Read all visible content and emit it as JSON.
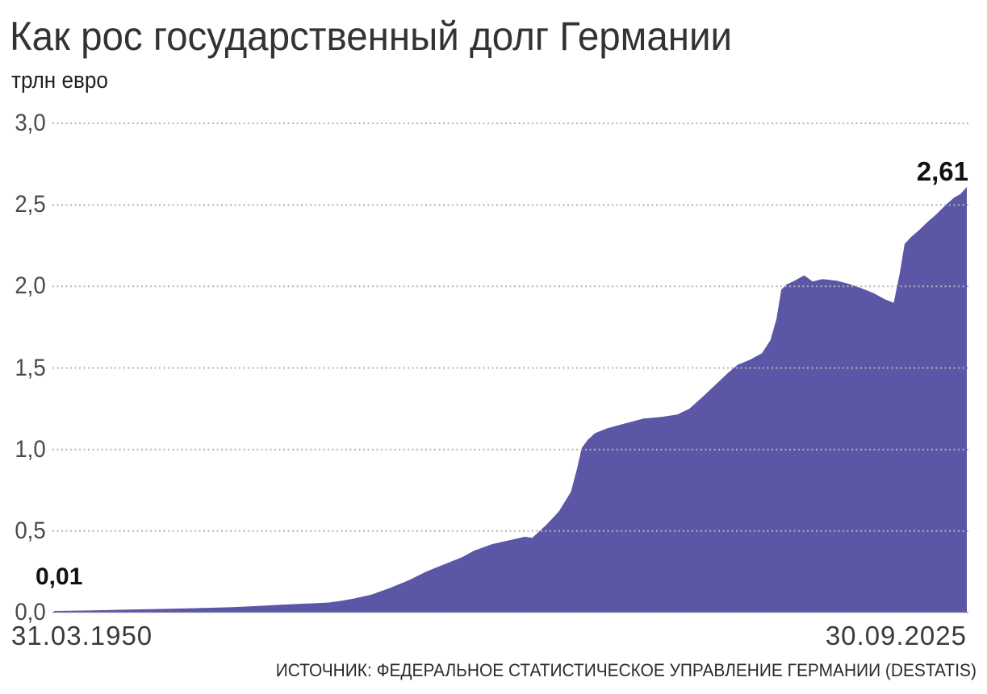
{
  "header": {
    "title": "Как рос государственный долг Германии",
    "subtitle": "трлн евро"
  },
  "annotations": {
    "start_value": "0,01",
    "end_value": "2,61"
  },
  "x_axis": {
    "start_label": "31.03.1950",
    "end_label": "30.09.2025"
  },
  "source": "ИСТОЧНИК: ФЕДЕРАЛЬНОЕ СТАТИСТИЧЕСКОЕ УПРАВЛЕНИЕ ГЕРМАНИИ (DESTATIS)",
  "colors": {
    "area_fill": "#5b57a6",
    "gridline": "#b4b4b4",
    "title_text": "#333333",
    "tick_text": "#4a4a4a",
    "annotation_text": "#111111"
  },
  "chart_data": {
    "type": "area",
    "title": "Как рос государственный долг Германии",
    "ylabel": "трлн евро",
    "xlabel": "",
    "x_start_date": "31.03.1950",
    "x_end_date": "30.09.2025",
    "xlim": [
      1950.25,
      2025.75
    ],
    "ylim": [
      0,
      3.0
    ],
    "grid": "horizontal-dotted",
    "legend": "none",
    "yticks": [
      {
        "value": 0.0,
        "label": "0,0"
      },
      {
        "value": 0.5,
        "label": "0,5"
      },
      {
        "value": 1.0,
        "label": "1,0"
      },
      {
        "value": 1.5,
        "label": "1,5"
      },
      {
        "value": 2.0,
        "label": "2,0"
      },
      {
        "value": 2.5,
        "label": "2,5"
      },
      {
        "value": 3.0,
        "label": "3,0"
      }
    ],
    "first_point": {
      "date": "31.03.1950",
      "value": 0.01,
      "label": "0,01"
    },
    "last_point": {
      "date": "30.09.2025",
      "value": 2.61,
      "label": "2,61"
    },
    "series": [
      {
        "name": "Государственный долг Германии, трлн евро",
        "points": [
          [
            1950.25,
            0.01
          ],
          [
            1953,
            0.013
          ],
          [
            1956,
            0.018
          ],
          [
            1959,
            0.022
          ],
          [
            1962,
            0.027
          ],
          [
            1965,
            0.033
          ],
          [
            1967,
            0.04
          ],
          [
            1969,
            0.048
          ],
          [
            1971,
            0.055
          ],
          [
            1972,
            0.058
          ],
          [
            1973,
            0.062
          ],
          [
            1974,
            0.072
          ],
          [
            1975,
            0.085
          ],
          [
            1976.5,
            0.11
          ],
          [
            1978,
            0.15
          ],
          [
            1979.5,
            0.195
          ],
          [
            1981,
            0.25
          ],
          [
            1982.5,
            0.295
          ],
          [
            1984,
            0.34
          ],
          [
            1985,
            0.38
          ],
          [
            1986.5,
            0.42
          ],
          [
            1988,
            0.445
          ],
          [
            1989.2,
            0.465
          ],
          [
            1989.8,
            0.458
          ],
          [
            1991,
            0.54
          ],
          [
            1992,
            0.62
          ],
          [
            1993,
            0.74
          ],
          [
            1993.5,
            0.88
          ],
          [
            1993.9,
            1.01
          ],
          [
            1994.4,
            1.06
          ],
          [
            1995,
            1.1
          ],
          [
            1996,
            1.13
          ],
          [
            1997.5,
            1.16
          ],
          [
            1999,
            1.19
          ],
          [
            2000.5,
            1.2
          ],
          [
            2001.8,
            1.215
          ],
          [
            2002.8,
            1.25
          ],
          [
            2004,
            1.33
          ],
          [
            2005,
            1.4
          ],
          [
            2006,
            1.47
          ],
          [
            2006.8,
            1.52
          ],
          [
            2007.8,
            1.55
          ],
          [
            2008.8,
            1.59
          ],
          [
            2009.5,
            1.67
          ],
          [
            2010,
            1.8
          ],
          [
            2010.4,
            1.98
          ],
          [
            2010.8,
            2.01
          ],
          [
            2011.5,
            2.035
          ],
          [
            2012.3,
            2.068
          ],
          [
            2013,
            2.03
          ],
          [
            2013.8,
            2.045
          ],
          [
            2015,
            2.035
          ],
          [
            2016,
            2.015
          ],
          [
            2017,
            1.99
          ],
          [
            2018,
            1.96
          ],
          [
            2019,
            1.92
          ],
          [
            2019.7,
            1.9
          ],
          [
            2020.2,
            2.08
          ],
          [
            2020.6,
            2.26
          ],
          [
            2021.1,
            2.3
          ],
          [
            2021.8,
            2.345
          ],
          [
            2022.5,
            2.395
          ],
          [
            2023.2,
            2.44
          ],
          [
            2024,
            2.5
          ],
          [
            2024.7,
            2.545
          ],
          [
            2025.2,
            2.565
          ],
          [
            2025.75,
            2.61
          ]
        ]
      }
    ]
  }
}
